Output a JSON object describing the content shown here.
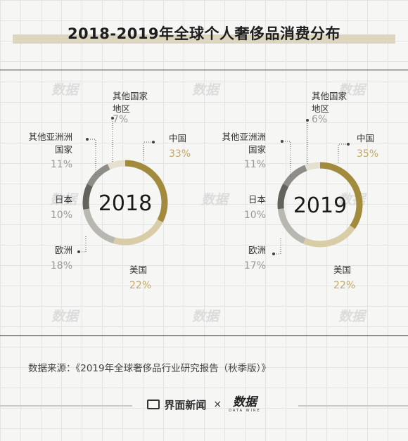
{
  "title": "2018-2019年全球个人奢侈品消费分布",
  "chart_data": [
    {
      "type": "pie",
      "year_label": "2018",
      "categories": [
        "中国",
        "美国",
        "欧洲",
        "日本",
        "其他亚洲国家",
        "其他国家地区"
      ],
      "values": [
        33,
        22,
        18,
        10,
        11,
        7
      ],
      "value_labels": [
        "33%",
        "22%",
        "18%",
        "10%",
        "11%",
        "7%"
      ],
      "name_lines": [
        [
          "中国"
        ],
        [
          "美国"
        ],
        [
          "欧洲"
        ],
        [
          "日本"
        ],
        [
          "其他亚洲洲",
          "国家"
        ],
        [
          "其他国家",
          "地区"
        ]
      ]
    },
    {
      "type": "pie",
      "year_label": "2019",
      "categories": [
        "中国",
        "美国",
        "欧洲",
        "日本",
        "其他亚洲国家",
        "其他国家地区"
      ],
      "values": [
        35,
        22,
        17,
        10,
        11,
        6
      ],
      "value_labels": [
        "35%",
        "22%",
        "17%",
        "10%",
        "11%",
        "6%"
      ],
      "name_lines": [
        [
          "中国"
        ],
        [
          "美国"
        ],
        [
          "欧洲"
        ],
        [
          "日本"
        ],
        [
          "其他亚洲洲",
          "国家"
        ],
        [
          "其他国家",
          "地区"
        ]
      ]
    }
  ],
  "colors": {
    "中国": "#a38b3e",
    "美国": "#d9cda7",
    "欧洲": "#b9b7b2",
    "日本": "#64625d",
    "其他亚洲国家": "#8f8d88",
    "其他国家地区": "#e6e0d0",
    "pct_gold": "#c2a866",
    "pct_gray": "#9a9a9a"
  },
  "source": "数据来源：《2019年全球奢侈品行业研究报告（秋季版）》",
  "footer": {
    "brand1_logo": "jm",
    "brand1_name": "界面新闻",
    "times": "×",
    "brand2_name": "数据",
    "brand2_sub": "DATA WIRE"
  },
  "watermark": "数据"
}
